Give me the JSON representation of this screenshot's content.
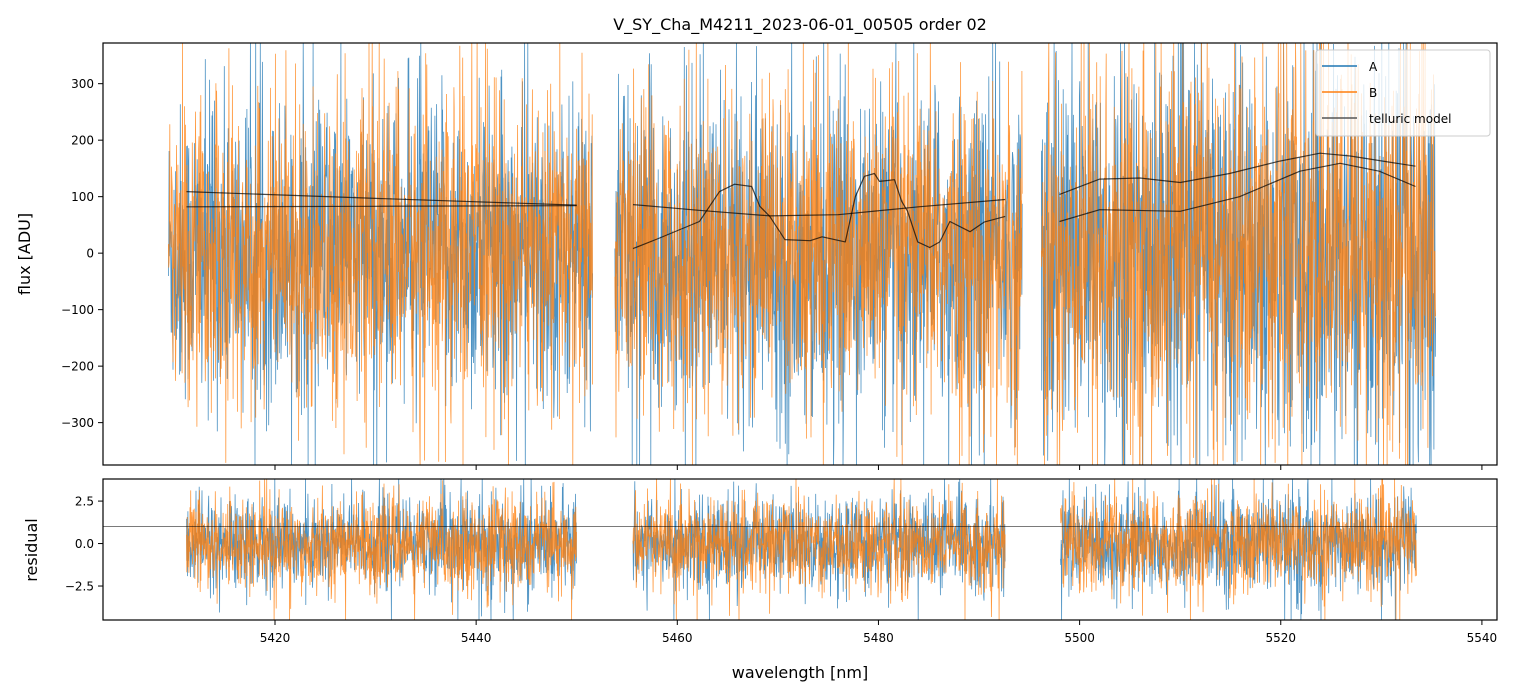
{
  "chart_data": [
    {
      "type": "line",
      "panel": "flux",
      "title": "V_SY_Cha_M4211_2023-06-01_00505  order 02",
      "xlabel": "wavelength [nm]",
      "ylabel": "flux [ADU]",
      "xlim": [
        5402.9,
        5541.5
      ],
      "ylim": [
        -375,
        372
      ],
      "xticks": [
        5420,
        5440,
        5460,
        5480,
        5500,
        5520,
        5540
      ],
      "yticks": [
        -300,
        -200,
        -100,
        0,
        100,
        200,
        300
      ],
      "ytick_labels": [
        "−300",
        "−200",
        "−100",
        "0",
        "100",
        "200",
        "300"
      ],
      "legend": {
        "placement": "top-right",
        "entries": [
          "A",
          "B",
          "telluric model"
        ]
      },
      "colors": {
        "A": "#1f77b4",
        "B": "#ff7f0e",
        "model": "#000000"
      },
      "noise_segments": [
        {
          "x": [
            5409.4,
            5451.6
          ],
          "std": 130
        },
        {
          "x": [
            5453.8,
            5494.3
          ],
          "std": 135
        },
        {
          "x": [
            5496.2,
            5535.4
          ],
          "std": 170
        }
      ],
      "series": [
        {
          "name": "telluric model",
          "segment": 1,
          "x": [
            5411.2,
            5430,
            5450
          ],
          "y": [
            109,
            97,
            85
          ]
        },
        {
          "name": "telluric model",
          "segment": 1,
          "x": [
            5411.2,
            5430,
            5450
          ],
          "y": [
            82,
            83,
            84
          ]
        },
        {
          "name": "telluric model",
          "segment": 2,
          "x": [
            5455.6,
            5462,
            5469.2,
            5476,
            5484,
            5492.6
          ],
          "y": [
            86,
            76,
            66,
            68,
            82,
            95
          ]
        },
        {
          "name": "telluric model",
          "segment": 2,
          "x": [
            5455.6,
            5458,
            5462.2,
            5464.2,
            5465.7,
            5467.4,
            5468.2,
            5469.2,
            5470.7,
            5473.2,
            5474.4,
            5476.7,
            5477.7,
            5478.6,
            5479.6,
            5480.1,
            5481.6,
            5482.3,
            5482.9,
            5483.9,
            5485.1,
            5486.1,
            5487.1,
            5489.1,
            5490.5,
            5492.6
          ],
          "y": [
            8,
            25,
            56,
            109,
            122,
            118,
            83,
            65,
            24,
            22,
            29,
            20,
            100,
            136,
            141,
            127,
            130,
            92,
            74,
            20,
            10,
            20,
            56,
            38,
            55,
            65
          ]
        },
        {
          "name": "telluric model",
          "segment": 3,
          "x": [
            5498.0,
            5502.0,
            5506.0,
            5510.0,
            5514.9,
            5519.9,
            5523.9,
            5526.9,
            5533.4
          ],
          "y": [
            104,
            131,
            133,
            125,
            141,
            163,
            177,
            172,
            154
          ]
        },
        {
          "name": "telluric model",
          "segment": 3,
          "x": [
            5498.0,
            5502.0,
            5510.0,
            5515.9,
            5521.9,
            5525.9,
            5529.8,
            5533.4
          ],
          "y": [
            56,
            77,
            74,
            100,
            145,
            159,
            145,
            118
          ]
        }
      ]
    },
    {
      "type": "line",
      "panel": "residual",
      "xlabel": "wavelength [nm]",
      "ylabel": "residual",
      "xlim": [
        5402.9,
        5541.5
      ],
      "ylim": [
        -4.5,
        3.8
      ],
      "yticks": [
        -2.5,
        0.0,
        2.5
      ],
      "ytick_labels": [
        "−2.5",
        "0.0",
        "2.5"
      ],
      "reference_line": 1.0,
      "noise_segments": [
        {
          "x": [
            5411.2,
            5450.0
          ],
          "std": 1.3
        },
        {
          "x": [
            5455.6,
            5492.6
          ],
          "std": 1.3
        },
        {
          "x": [
            5498.1,
            5533.5
          ],
          "std": 1.4
        }
      ]
    }
  ]
}
